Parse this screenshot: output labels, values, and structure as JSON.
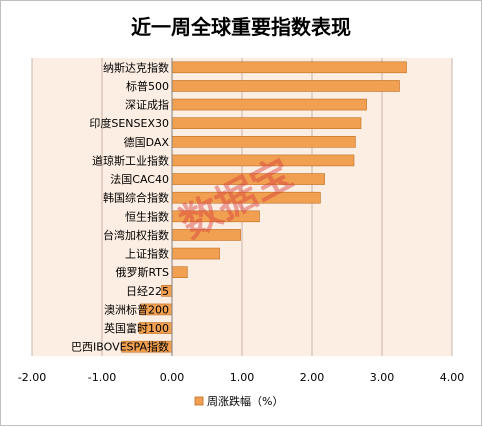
{
  "chart_data": {
    "type": "bar",
    "orientation": "horizontal",
    "title": "近一周全球重要指数表现",
    "categories": [
      "纳斯达克指数",
      "标普500",
      "深证成指",
      "印度SENSEX30",
      "德国DAX",
      "道琼斯工业指数",
      "法国CAC40",
      "韩国综合指数",
      "恒生指数",
      "台湾加权指数",
      "上证指数",
      "俄罗斯RTS",
      "日经225",
      "澳洲标普200",
      "英国富时100",
      "巴西IBOVESPA指数"
    ],
    "series": [
      {
        "name": "周涨跌幅（%）",
        "values": [
          3.35,
          3.25,
          2.78,
          2.7,
          2.62,
          2.6,
          2.18,
          2.12,
          1.25,
          0.98,
          0.68,
          0.22,
          -0.15,
          -0.45,
          -0.47,
          -0.72
        ]
      }
    ],
    "xlim": [
      -2.0,
      4.0
    ],
    "xticks": [
      -2.0,
      -1.0,
      0.0,
      1.0,
      2.0,
      3.0,
      4.0
    ],
    "xtick_labels": [
      "-2.00",
      "-1.00",
      "0.00",
      "1.00",
      "2.00",
      "3.00",
      "4.00"
    ],
    "grid": "vertical",
    "legend_position": "bottom",
    "colors": {
      "bar_fill": "#F0A050",
      "bar_stroke": "#C06E24",
      "plot_background": "#FCEEE3",
      "grid": "#B89A8A",
      "axis": "#808080"
    }
  },
  "watermark": "数据宝"
}
